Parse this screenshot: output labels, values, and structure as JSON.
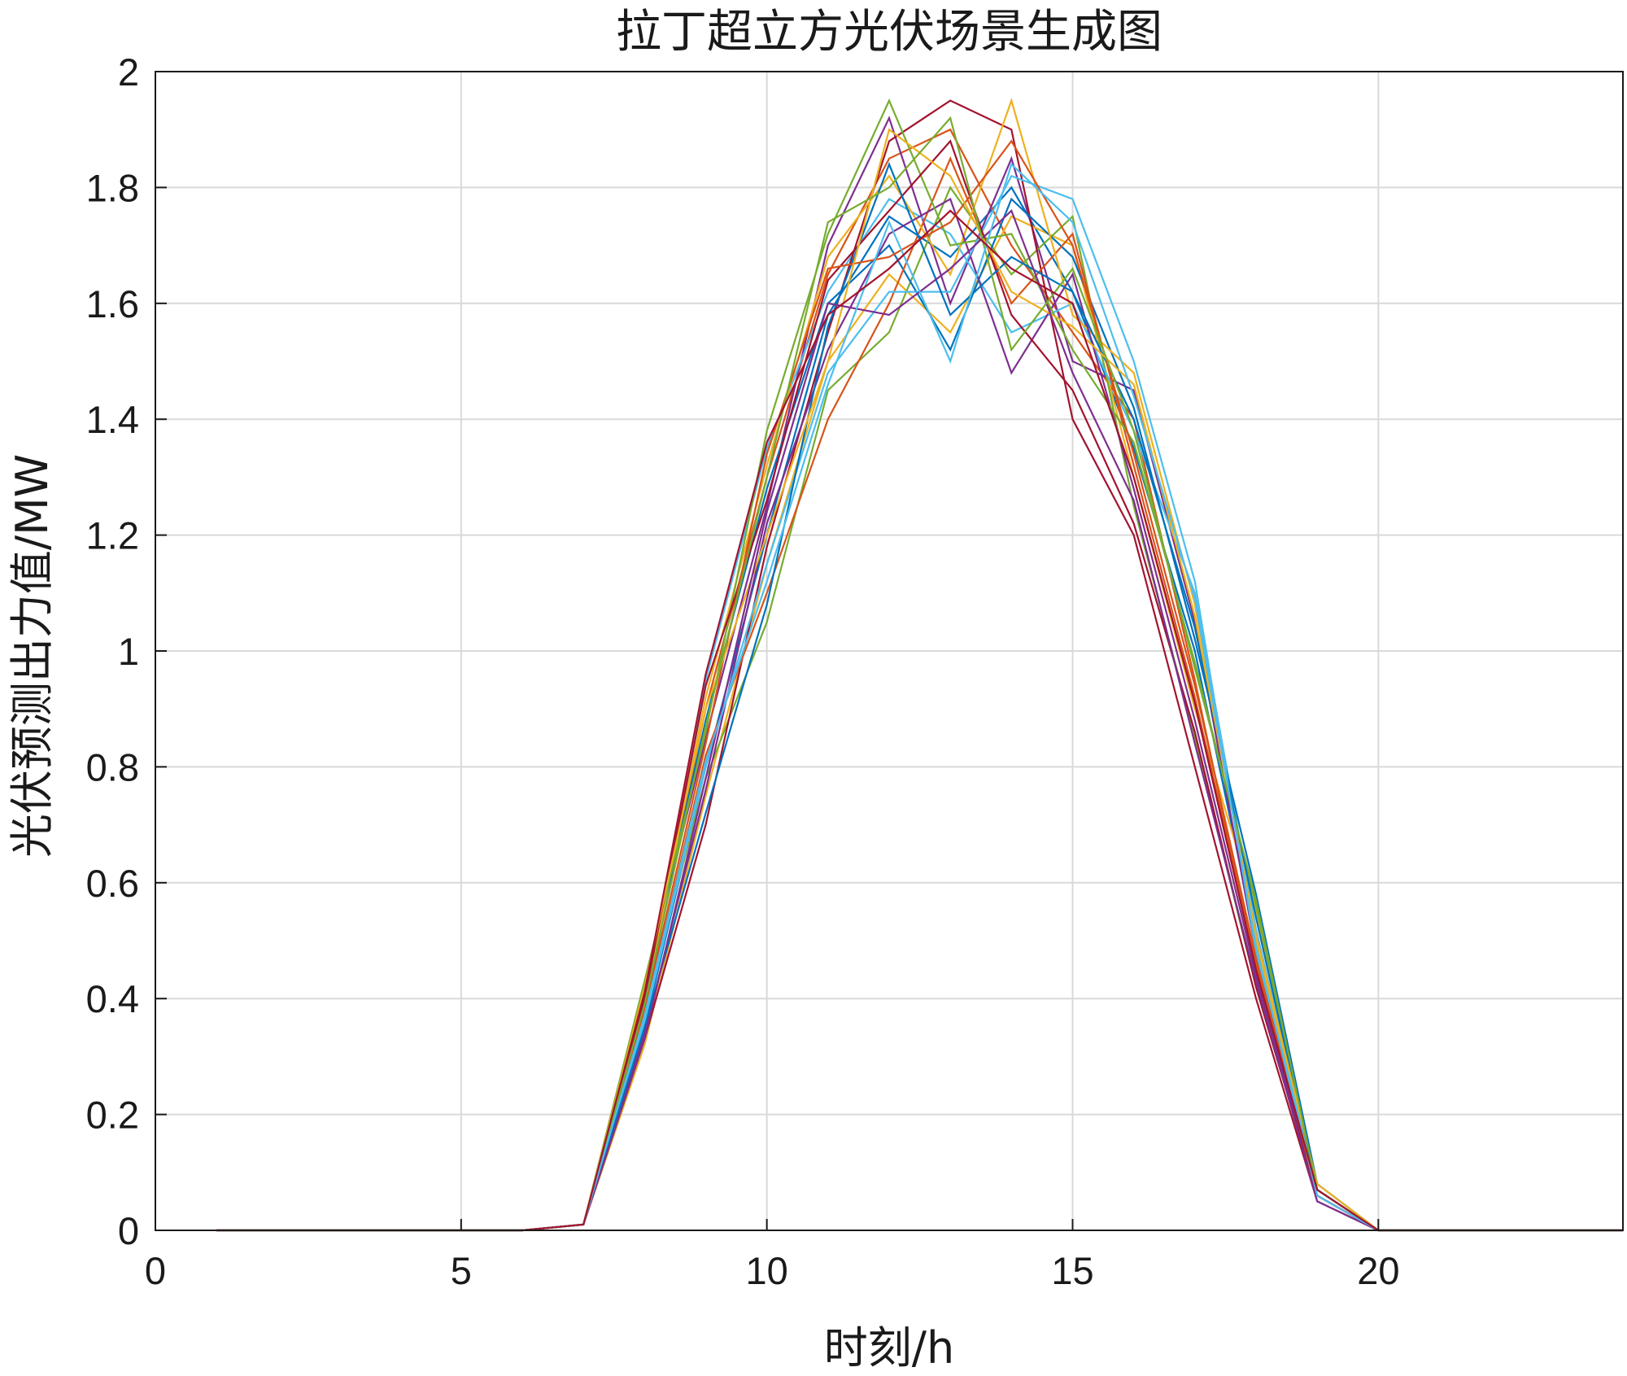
{
  "chart_data": {
    "type": "line",
    "title": "拉丁超立方光伏场景生成图",
    "xlabel": "时刻/h",
    "ylabel": "光伏预测出力值/MW",
    "xlim": [
      0,
      24
    ],
    "ylim": [
      0,
      2
    ],
    "xticks": [
      0,
      5,
      10,
      15,
      20
    ],
    "yticks": [
      0,
      0.2,
      0.4,
      0.6,
      0.8,
      1,
      1.2,
      1.4,
      1.6,
      1.8,
      2
    ],
    "xtick_labels": [
      "0",
      "5",
      "10",
      "15",
      "20"
    ],
    "ytick_labels": [
      "0",
      "0.2",
      "0.4",
      "0.6",
      "0.8",
      "1",
      "1.2",
      "1.4",
      "1.6",
      "1.8",
      "2"
    ],
    "grid": true,
    "x": [
      1,
      2,
      3,
      4,
      5,
      6,
      7,
      8,
      9,
      10,
      11,
      12,
      13,
      14,
      15,
      16,
      17,
      18,
      19,
      20,
      21,
      22,
      23,
      24
    ],
    "series_colors": [
      "#0072BD",
      "#D95319",
      "#EDB120",
      "#7E2F8E",
      "#77AC30",
      "#4DBEEE",
      "#A2142F"
    ],
    "series": [
      {
        "values": [
          0,
          0,
          0,
          0,
          0,
          0,
          0.01,
          0.35,
          0.8,
          1.2,
          1.58,
          1.75,
          1.68,
          1.8,
          1.62,
          1.35,
          1.0,
          0.5,
          0.07,
          0,
          0,
          0,
          0,
          0
        ]
      },
      {
        "values": [
          0,
          0,
          0,
          0,
          0,
          0,
          0.01,
          0.4,
          0.9,
          1.3,
          1.65,
          1.85,
          1.9,
          1.7,
          1.55,
          1.4,
          0.95,
          0.45,
          0.06,
          0,
          0,
          0,
          0,
          0
        ]
      },
      {
        "values": [
          0,
          0,
          0,
          0,
          0,
          0,
          0.01,
          0.32,
          0.75,
          1.15,
          1.5,
          1.65,
          1.55,
          1.75,
          1.7,
          1.3,
          0.9,
          0.55,
          0.08,
          0,
          0,
          0,
          0,
          0
        ]
      },
      {
        "values": [
          0,
          0,
          0,
          0,
          0,
          0,
          0.01,
          0.42,
          0.85,
          1.25,
          1.7,
          1.92,
          1.6,
          1.85,
          1.5,
          1.45,
          1.05,
          0.48,
          0.07,
          0,
          0,
          0,
          0,
          0
        ]
      },
      {
        "values": [
          0,
          0,
          0,
          0,
          0,
          0,
          0.01,
          0.38,
          0.78,
          1.05,
          1.45,
          1.55,
          1.8,
          1.65,
          1.75,
          1.25,
          0.85,
          0.42,
          0.06,
          0,
          0,
          0,
          0,
          0
        ]
      },
      {
        "values": [
          0,
          0,
          0,
          0,
          0,
          0,
          0.01,
          0.36,
          0.95,
          1.35,
          1.62,
          1.78,
          1.72,
          1.55,
          1.6,
          1.38,
          1.1,
          0.52,
          0.07,
          0,
          0,
          0,
          0,
          0
        ]
      },
      {
        "values": [
          0,
          0,
          0,
          0,
          0,
          0,
          0.01,
          0.33,
          0.7,
          1.18,
          1.55,
          1.88,
          1.95,
          1.9,
          1.4,
          1.2,
          0.8,
          0.4,
          0.05,
          0,
          0,
          0,
          0,
          0
        ]
      },
      {
        "values": [
          0,
          0,
          0,
          0,
          0,
          0,
          0.01,
          0.41,
          0.88,
          1.28,
          1.6,
          1.7,
          1.52,
          1.78,
          1.68,
          1.42,
          1.02,
          0.58,
          0.08,
          0,
          0,
          0,
          0,
          0
        ]
      },
      {
        "values": [
          0,
          0,
          0,
          0,
          0,
          0,
          0.01,
          0.37,
          0.82,
          1.1,
          1.4,
          1.6,
          1.85,
          1.6,
          1.72,
          1.32,
          0.92,
          0.46,
          0.06,
          0,
          0,
          0,
          0,
          0
        ]
      },
      {
        "values": [
          0,
          0,
          0,
          0,
          0,
          0,
          0.01,
          0.39,
          0.92,
          1.32,
          1.68,
          1.82,
          1.65,
          1.95,
          1.58,
          1.48,
          1.08,
          0.5,
          0.07,
          0,
          0,
          0,
          0,
          0
        ]
      },
      {
        "values": [
          0,
          0,
          0,
          0,
          0,
          0,
          0.01,
          0.34,
          0.76,
          1.22,
          1.52,
          1.72,
          1.78,
          1.48,
          1.65,
          1.28,
          0.88,
          0.44,
          0.06,
          0,
          0,
          0,
          0,
          0
        ]
      },
      {
        "values": [
          0,
          0,
          0,
          0,
          0,
          0,
          0.01,
          0.43,
          0.86,
          1.38,
          1.72,
          1.95,
          1.7,
          1.72,
          1.52,
          1.36,
          0.98,
          0.56,
          0.07,
          0,
          0,
          0,
          0,
          0
        ]
      },
      {
        "values": [
          0,
          0,
          0,
          0,
          0,
          0,
          0.01,
          0.36,
          0.8,
          1.15,
          1.48,
          1.62,
          1.62,
          1.82,
          1.78,
          1.5,
          1.12,
          0.48,
          0.08,
          0,
          0,
          0,
          0,
          0
        ]
      },
      {
        "values": [
          0,
          0,
          0,
          0,
          0,
          0,
          0.01,
          0.4,
          0.94,
          1.26,
          1.64,
          1.76,
          1.88,
          1.58,
          1.45,
          1.22,
          0.86,
          0.42,
          0.06,
          0,
          0,
          0,
          0,
          0
        ]
      },
      {
        "values": [
          0,
          0,
          0,
          0,
          0,
          0,
          0.01,
          0.35,
          0.72,
          1.08,
          1.56,
          1.84,
          1.58,
          1.68,
          1.62,
          1.4,
          1.04,
          0.54,
          0.07,
          0,
          0,
          0,
          0,
          0
        ]
      },
      {
        "values": [
          0,
          0,
          0,
          0,
          0,
          0,
          0.01,
          0.38,
          0.84,
          1.34,
          1.66,
          1.68,
          1.74,
          1.88,
          1.7,
          1.34,
          0.94,
          0.47,
          0.06,
          0,
          0,
          0,
          0,
          0
        ]
      },
      {
        "values": [
          0,
          0,
          0,
          0,
          0,
          0,
          0.01,
          0.42,
          0.9,
          1.2,
          1.5,
          1.9,
          1.82,
          1.62,
          1.56,
          1.46,
          1.06,
          0.51,
          0.08,
          0,
          0,
          0,
          0,
          0
        ]
      },
      {
        "values": [
          0,
          0,
          0,
          0,
          0,
          0,
          0.01,
          0.33,
          0.78,
          1.24,
          1.6,
          1.58,
          1.66,
          1.76,
          1.48,
          1.26,
          0.84,
          0.43,
          0.05,
          0,
          0,
          0,
          0,
          0
        ]
      },
      {
        "values": [
          0,
          0,
          0,
          0,
          0,
          0,
          0.01,
          0.39,
          0.87,
          1.3,
          1.74,
          1.8,
          1.92,
          1.52,
          1.66,
          1.38,
          0.97,
          0.57,
          0.07,
          0,
          0,
          0,
          0,
          0
        ]
      },
      {
        "values": [
          0,
          0,
          0,
          0,
          0,
          0,
          0.01,
          0.37,
          0.81,
          1.12,
          1.46,
          1.74,
          1.5,
          1.84,
          1.74,
          1.44,
          1.09,
          0.49,
          0.06,
          0,
          0,
          0,
          0,
          0
        ]
      },
      {
        "values": [
          0,
          0,
          0,
          0,
          0,
          0,
          0.01,
          0.41,
          0.96,
          1.36,
          1.58,
          1.66,
          1.76,
          1.66,
          1.6,
          1.3,
          0.91,
          0.45,
          0.07,
          0,
          0,
          0,
          0,
          0
        ]
      }
    ]
  }
}
